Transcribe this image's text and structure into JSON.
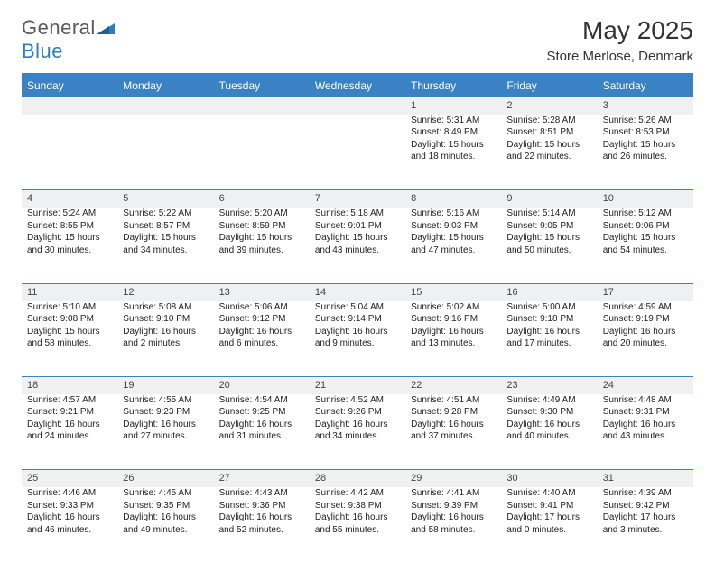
{
  "logo": {
    "word1": "General",
    "word2": "Blue"
  },
  "title": "May 2025",
  "location": "Store Merlose, Denmark",
  "header_bg": "#3a82c4",
  "header_fg": "#ffffff",
  "daynum_bg": "#eef0f2",
  "border_color": "#3a82c4",
  "text_color": "#222222",
  "day_headers": [
    "Sunday",
    "Monday",
    "Tuesday",
    "Wednesday",
    "Thursday",
    "Friday",
    "Saturday"
  ],
  "weeks": [
    {
      "nums": [
        "",
        "",
        "",
        "",
        "1",
        "2",
        "3"
      ],
      "cells": [
        null,
        null,
        null,
        null,
        {
          "sunrise": "5:31 AM",
          "sunset": "8:49 PM",
          "dl_h": 15,
          "dl_m": 18
        },
        {
          "sunrise": "5:28 AM",
          "sunset": "8:51 PM",
          "dl_h": 15,
          "dl_m": 22
        },
        {
          "sunrise": "5:26 AM",
          "sunset": "8:53 PM",
          "dl_h": 15,
          "dl_m": 26
        }
      ]
    },
    {
      "nums": [
        "4",
        "5",
        "6",
        "7",
        "8",
        "9",
        "10"
      ],
      "cells": [
        {
          "sunrise": "5:24 AM",
          "sunset": "8:55 PM",
          "dl_h": 15,
          "dl_m": 30
        },
        {
          "sunrise": "5:22 AM",
          "sunset": "8:57 PM",
          "dl_h": 15,
          "dl_m": 34
        },
        {
          "sunrise": "5:20 AM",
          "sunset": "8:59 PM",
          "dl_h": 15,
          "dl_m": 39
        },
        {
          "sunrise": "5:18 AM",
          "sunset": "9:01 PM",
          "dl_h": 15,
          "dl_m": 43
        },
        {
          "sunrise": "5:16 AM",
          "sunset": "9:03 PM",
          "dl_h": 15,
          "dl_m": 47
        },
        {
          "sunrise": "5:14 AM",
          "sunset": "9:05 PM",
          "dl_h": 15,
          "dl_m": 50
        },
        {
          "sunrise": "5:12 AM",
          "sunset": "9:06 PM",
          "dl_h": 15,
          "dl_m": 54
        }
      ]
    },
    {
      "nums": [
        "11",
        "12",
        "13",
        "14",
        "15",
        "16",
        "17"
      ],
      "cells": [
        {
          "sunrise": "5:10 AM",
          "sunset": "9:08 PM",
          "dl_h": 15,
          "dl_m": 58
        },
        {
          "sunrise": "5:08 AM",
          "sunset": "9:10 PM",
          "dl_h": 16,
          "dl_m": 2
        },
        {
          "sunrise": "5:06 AM",
          "sunset": "9:12 PM",
          "dl_h": 16,
          "dl_m": 6
        },
        {
          "sunrise": "5:04 AM",
          "sunset": "9:14 PM",
          "dl_h": 16,
          "dl_m": 9
        },
        {
          "sunrise": "5:02 AM",
          "sunset": "9:16 PM",
          "dl_h": 16,
          "dl_m": 13
        },
        {
          "sunrise": "5:00 AM",
          "sunset": "9:18 PM",
          "dl_h": 16,
          "dl_m": 17
        },
        {
          "sunrise": "4:59 AM",
          "sunset": "9:19 PM",
          "dl_h": 16,
          "dl_m": 20
        }
      ]
    },
    {
      "nums": [
        "18",
        "19",
        "20",
        "21",
        "22",
        "23",
        "24"
      ],
      "cells": [
        {
          "sunrise": "4:57 AM",
          "sunset": "9:21 PM",
          "dl_h": 16,
          "dl_m": 24
        },
        {
          "sunrise": "4:55 AM",
          "sunset": "9:23 PM",
          "dl_h": 16,
          "dl_m": 27
        },
        {
          "sunrise": "4:54 AM",
          "sunset": "9:25 PM",
          "dl_h": 16,
          "dl_m": 31
        },
        {
          "sunrise": "4:52 AM",
          "sunset": "9:26 PM",
          "dl_h": 16,
          "dl_m": 34
        },
        {
          "sunrise": "4:51 AM",
          "sunset": "9:28 PM",
          "dl_h": 16,
          "dl_m": 37
        },
        {
          "sunrise": "4:49 AM",
          "sunset": "9:30 PM",
          "dl_h": 16,
          "dl_m": 40
        },
        {
          "sunrise": "4:48 AM",
          "sunset": "9:31 PM",
          "dl_h": 16,
          "dl_m": 43
        }
      ]
    },
    {
      "nums": [
        "25",
        "26",
        "27",
        "28",
        "29",
        "30",
        "31"
      ],
      "cells": [
        {
          "sunrise": "4:46 AM",
          "sunset": "9:33 PM",
          "dl_h": 16,
          "dl_m": 46
        },
        {
          "sunrise": "4:45 AM",
          "sunset": "9:35 PM",
          "dl_h": 16,
          "dl_m": 49
        },
        {
          "sunrise": "4:43 AM",
          "sunset": "9:36 PM",
          "dl_h": 16,
          "dl_m": 52
        },
        {
          "sunrise": "4:42 AM",
          "sunset": "9:38 PM",
          "dl_h": 16,
          "dl_m": 55
        },
        {
          "sunrise": "4:41 AM",
          "sunset": "9:39 PM",
          "dl_h": 16,
          "dl_m": 58
        },
        {
          "sunrise": "4:40 AM",
          "sunset": "9:41 PM",
          "dl_h": 17,
          "dl_m": 0
        },
        {
          "sunrise": "4:39 AM",
          "sunset": "9:42 PM",
          "dl_h": 17,
          "dl_m": 3
        }
      ]
    }
  ]
}
